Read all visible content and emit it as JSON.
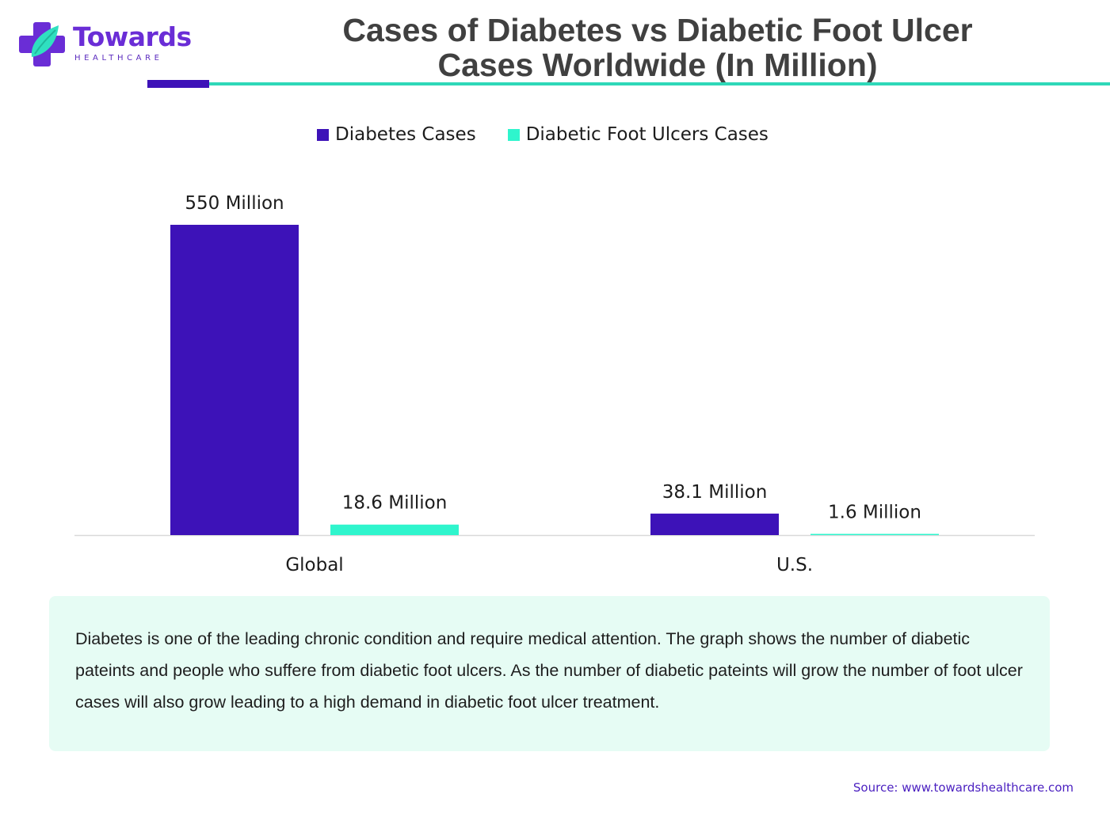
{
  "brand": {
    "name": "Towards",
    "sub": "HEALTHCARE"
  },
  "header": {
    "title_line1": "Cases of Diabetes vs Diabetic Foot Ulcer",
    "title_line2": "Cases Worldwide (In Million)"
  },
  "colors": {
    "diabetes": "#3d12b8",
    "ulcers": "#2ff5cd",
    "accent_teal": "#2fd8b8",
    "note_bg": "#e6fcf4",
    "source_text": "#4a1fc0"
  },
  "chart_data": {
    "type": "bar",
    "title": "Cases of Diabetes vs Diabetic Foot Ulcer Cases Worldwide (In Million)",
    "categories": [
      "Global",
      "U.S."
    ],
    "series": [
      {
        "name": "Diabetes Cases",
        "values": [
          550,
          38.1
        ],
        "labels": [
          "550 Million",
          "38.1 Million"
        ],
        "color": "#3d12b8"
      },
      {
        "name": "Diabetic Foot Ulcers Cases",
        "values": [
          18.6,
          1.6
        ],
        "labels": [
          "18.6 Million",
          "1.6 Million"
        ],
        "color": "#2ff5cd"
      }
    ],
    "ylim": [
      0,
      550
    ],
    "grid": false,
    "legend_position": "top-center",
    "xlabel": "",
    "ylabel": ""
  },
  "note": {
    "text": "Diabetes is one of the leading chronic condition and require medical attention. The graph shows the number of diabetic pateints and people who suffere from diabetic foot ulcers. As the number of diabetic pateints will grow the number of foot ulcer cases will also grow leading to a high demand in diabetic foot ulcer treatment."
  },
  "source": {
    "text": "Source: www.towardshealthcare.com"
  }
}
